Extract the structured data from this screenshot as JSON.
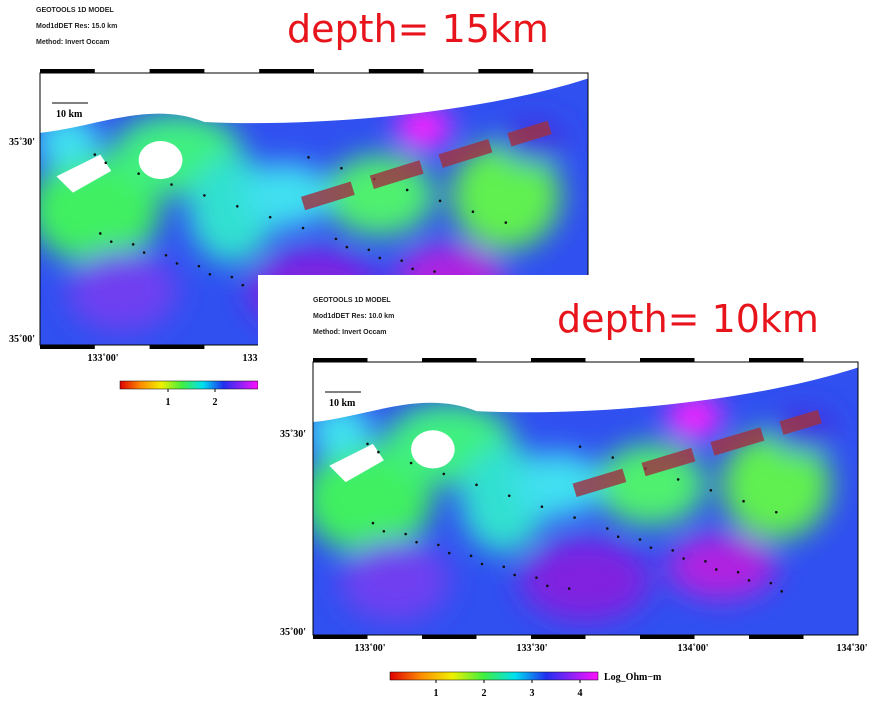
{
  "panels": [
    {
      "header": [
        "GEOTOOLS 1D MODEL",
        "Mod1dDET Res: 15.0 km",
        "Method: Invert Occam"
      ],
      "depth_label": "depth= 15km",
      "scale_bar": "10 km",
      "lat_labels": [
        "35˚30'",
        "35˚00'"
      ],
      "lon_labels": [
        "133˚00'",
        "133"
      ],
      "colorbar_ticks": [
        1,
        2
      ]
    },
    {
      "header": [
        "GEOTOOLS 1D MODEL",
        "Mod1dDET Res: 10.0 km",
        "Method: Invert Occam"
      ],
      "depth_label": "depth= 10km",
      "scale_bar": "10 km",
      "lat_labels": [
        "35˚30'",
        "35˚00'"
      ],
      "lon_labels": [
        "133˚00'",
        "133˚30'",
        "134˚00'",
        "134˚30'"
      ],
      "colorbar_ticks": [
        1,
        2,
        3,
        4
      ],
      "colorbar_title": "Log_Ohm−m"
    }
  ]
}
